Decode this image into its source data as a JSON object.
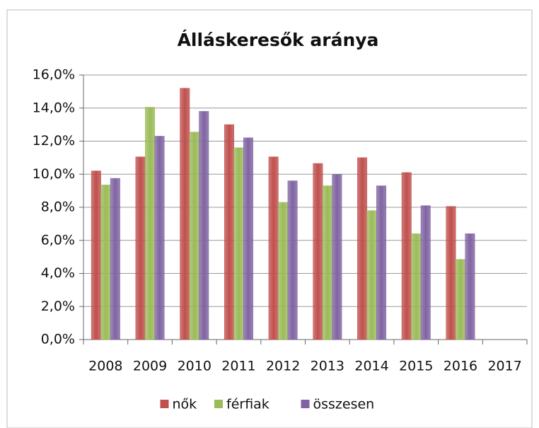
{
  "chart_data": {
    "type": "bar",
    "title": "Álláskeresők aránya",
    "categories": [
      "2008",
      "2009",
      "2010",
      "2011",
      "2012",
      "2013",
      "2014",
      "2015",
      "2016",
      "2017"
    ],
    "series": [
      {
        "name": "nők",
        "color": "#c0504d",
        "values": [
          10.2,
          11.05,
          15.2,
          13.0,
          11.05,
          10.65,
          11.0,
          10.1,
          8.05,
          null
        ]
      },
      {
        "name": "férfiak",
        "color": "#9bbb59",
        "values": [
          9.35,
          14.05,
          12.55,
          11.6,
          8.3,
          9.3,
          7.8,
          6.4,
          4.85,
          null
        ]
      },
      {
        "name": "összesen",
        "color": "#8064a2",
        "values": [
          9.75,
          12.3,
          13.8,
          12.2,
          9.6,
          10.0,
          9.3,
          8.1,
          6.4,
          null
        ]
      }
    ],
    "ylim": [
      0,
      16
    ],
    "yticks": [
      {
        "value": 0,
        "label": "0,0%"
      },
      {
        "value": 2,
        "label": "2,0%"
      },
      {
        "value": 4,
        "label": "4,0%"
      },
      {
        "value": 6,
        "label": "6,0%"
      },
      {
        "value": 8,
        "label": "8,0%"
      },
      {
        "value": 10,
        "label": "10,0%"
      },
      {
        "value": 12,
        "label": "12,0%"
      },
      {
        "value": 14,
        "label": "14,0%"
      },
      {
        "value": 16,
        "label": "16,0%"
      }
    ],
    "grid": true,
    "legend": "bottom"
  }
}
